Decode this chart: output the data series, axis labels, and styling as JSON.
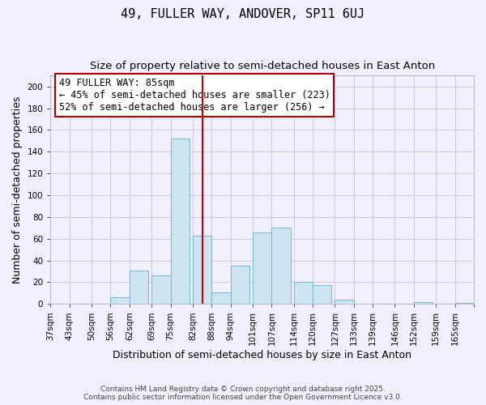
{
  "title": "49, FULLER WAY, ANDOVER, SP11 6UJ",
  "subtitle": "Size of property relative to semi-detached houses in East Anton",
  "xlabel": "Distribution of semi-detached houses by size in East Anton",
  "ylabel": "Number of semi-detached properties",
  "footnote1": "Contains HM Land Registry data © Crown copyright and database right 2025.",
  "footnote2": "Contains public sector information licensed under the Open Government Licence v3.0.",
  "bin_labels": [
    "37sqm",
    "43sqm",
    "50sqm",
    "56sqm",
    "62sqm",
    "69sqm",
    "75sqm",
    "82sqm",
    "88sqm",
    "94sqm",
    "101sqm",
    "107sqm",
    "114sqm",
    "120sqm",
    "127sqm",
    "133sqm",
    "139sqm",
    "146sqm",
    "152sqm",
    "159sqm",
    "165sqm"
  ],
  "bar_values": [
    0,
    0,
    0,
    6,
    31,
    26,
    152,
    63,
    11,
    35,
    66,
    70,
    20,
    17,
    4,
    0,
    0,
    0,
    2,
    0,
    1
  ],
  "bar_left_edges": [
    37,
    43,
    50,
    56,
    62,
    69,
    75,
    82,
    88,
    94,
    101,
    107,
    114,
    120,
    127,
    133,
    139,
    146,
    152,
    159,
    165
  ],
  "bin_width": 6,
  "bar_color": "#cce5f0",
  "bar_edge_color": "#7bbcd5",
  "vline_x": 85,
  "vline_color": "#cc0000",
  "ylim": [
    0,
    210
  ],
  "yticks": [
    0,
    20,
    40,
    60,
    80,
    100,
    120,
    140,
    160,
    180,
    200
  ],
  "annotation_title": "49 FULLER WAY: 85sqm",
  "annotation_line1": "← 45% of semi-detached houses are smaller (223)",
  "annotation_line2": "52% of semi-detached houses are larger (256) →",
  "annotation_box_color": "#ffffff",
  "annotation_border_color": "#aa0000",
  "bg_color": "#f0f0ff",
  "grid_color": "#ccccdd",
  "title_fontsize": 11,
  "subtitle_fontsize": 9.5,
  "axis_label_fontsize": 9,
  "tick_fontsize": 7.5,
  "annotation_fontsize": 8.5,
  "footnote_fontsize": 6.5
}
